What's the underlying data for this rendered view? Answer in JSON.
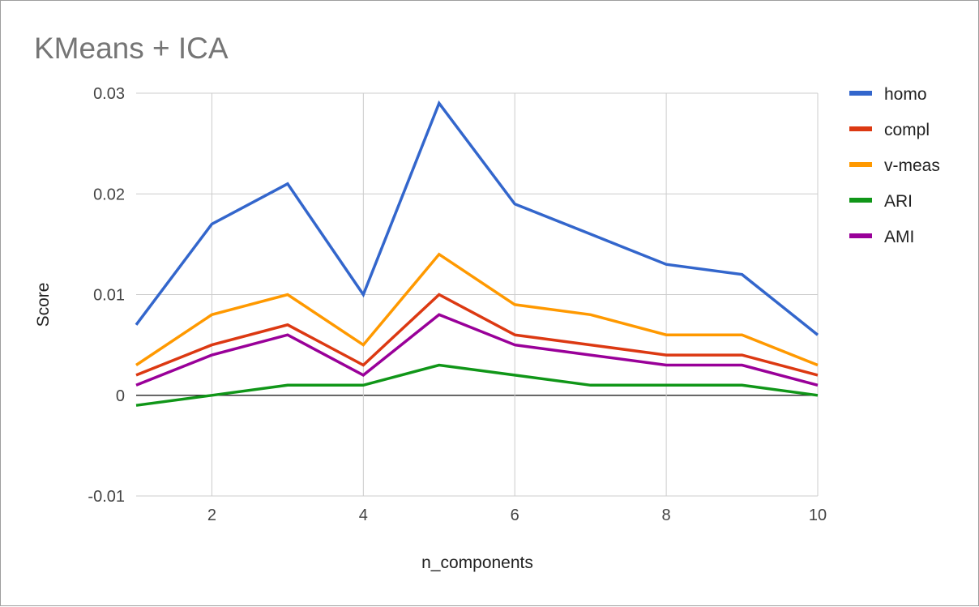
{
  "chart_data": {
    "type": "line",
    "title": "KMeans + ICA",
    "xlabel": "n_components",
    "ylabel": "Score",
    "x": [
      1,
      2,
      3,
      4,
      5,
      6,
      7,
      8,
      9,
      10
    ],
    "xlim": [
      1,
      10
    ],
    "ylim": [
      -0.01,
      0.03
    ],
    "x_ticks": [
      "2",
      "4",
      "6",
      "8",
      "10"
    ],
    "y_ticks": [
      "0.03",
      "0.02",
      "0.01",
      "0",
      "-0.01"
    ],
    "grid": true,
    "legend_position": "right",
    "series": [
      {
        "name": "homo",
        "color": "#3366cc",
        "values": [
          0.007,
          0.017,
          0.021,
          0.01,
          0.029,
          0.019,
          0.016,
          0.013,
          0.012,
          0.006
        ]
      },
      {
        "name": "compl",
        "color": "#dc3912",
        "values": [
          0.002,
          0.005,
          0.007,
          0.003,
          0.01,
          0.006,
          0.005,
          0.004,
          0.004,
          0.002
        ]
      },
      {
        "name": "v-meas",
        "color": "#ff9900",
        "values": [
          0.003,
          0.008,
          0.01,
          0.005,
          0.014,
          0.009,
          0.008,
          0.006,
          0.006,
          0.003
        ]
      },
      {
        "name": "ARI",
        "color": "#109618",
        "values": [
          -0.001,
          0.0,
          0.001,
          0.001,
          0.003,
          0.002,
          0.001,
          0.001,
          0.001,
          0.0
        ]
      },
      {
        "name": "AMI",
        "color": "#990099",
        "values": [
          0.001,
          0.004,
          0.006,
          0.002,
          0.008,
          0.005,
          0.004,
          0.003,
          0.003,
          0.001
        ]
      }
    ]
  }
}
